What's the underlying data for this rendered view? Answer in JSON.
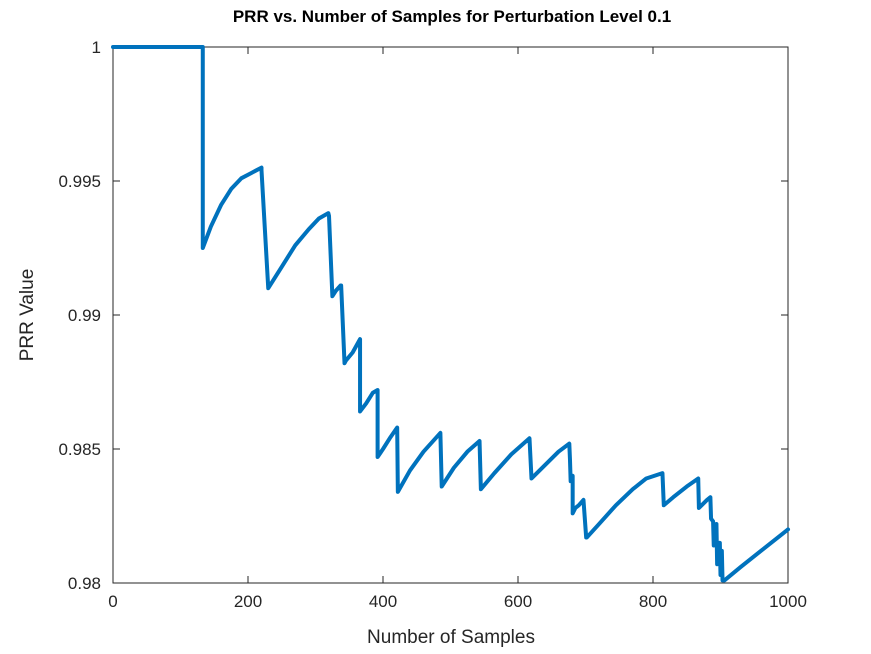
{
  "chart_data": {
    "type": "line",
    "title": "PRR vs. Number of Samples for Perturbation Level 0.1",
    "xlabel": "Number of Samples",
    "ylabel": "PRR Value",
    "xlim": [
      0,
      1000
    ],
    "ylim": [
      0.98,
      1
    ],
    "xticks": [
      0,
      200,
      400,
      600,
      800,
      1000
    ],
    "xtick_labels": [
      "0",
      "200",
      "400",
      "600",
      "800",
      "1000"
    ],
    "yticks": [
      0.98,
      0.985,
      0.99,
      0.995,
      1
    ],
    "ytick_labels": [
      "0.98",
      "0.985",
      "0.99",
      "0.995",
      "1"
    ],
    "grid": false,
    "legend": "none",
    "color": "#0072bd",
    "series": [
      {
        "x": [
          0,
          133,
          133,
          145,
          160,
          175,
          190,
          205,
          220,
          220,
          230,
          250,
          270,
          290,
          305,
          319,
          320,
          325,
          330,
          337,
          338,
          343,
          345,
          355,
          366,
          366,
          375,
          385,
          392,
          392,
          400,
          410,
          421,
          422,
          440,
          460,
          485,
          487,
          505,
          525,
          543,
          545,
          565,
          590,
          617,
          620,
          640,
          660,
          676,
          677,
          678,
          681,
          681,
          685,
          690,
          697,
          701,
          702,
          720,
          745,
          770,
          790,
          814,
          816,
          830,
          850,
          867,
          868,
          872,
          880,
          885,
          886,
          889,
          890,
          894,
          895,
          899,
          900,
          902,
          903,
          906,
          930,
          960,
          990,
          1000
        ],
        "y": [
          1.0,
          1.0,
          0.9925,
          0.9933,
          0.9941,
          0.9947,
          0.9951,
          0.9953,
          0.9955,
          0.9954,
          0.991,
          0.9918,
          0.9926,
          0.9932,
          0.9936,
          0.9938,
          0.9937,
          0.9907,
          0.9909,
          0.9911,
          0.9911,
          0.9882,
          0.9883,
          0.9886,
          0.9891,
          0.9864,
          0.9867,
          0.9871,
          0.9872,
          0.9847,
          0.985,
          0.9854,
          0.9858,
          0.9834,
          0.9842,
          0.9849,
          0.9856,
          0.9836,
          0.9843,
          0.9849,
          0.9853,
          0.9835,
          0.9841,
          0.9848,
          0.9854,
          0.9839,
          0.9844,
          0.9849,
          0.9852,
          0.9846,
          0.9838,
          0.984,
          0.9826,
          0.9828,
          0.9829,
          0.9831,
          0.9817,
          0.9817,
          0.9822,
          0.9829,
          0.9835,
          0.9839,
          0.9841,
          0.9829,
          0.9832,
          0.9836,
          0.9839,
          0.9828,
          0.9829,
          0.9831,
          0.9832,
          0.9824,
          0.9823,
          0.9814,
          0.9822,
          0.9807,
          0.9815,
          0.9803,
          0.9812,
          0.9801,
          0.9801,
          0.9806,
          0.9812,
          0.9818,
          0.982
        ]
      }
    ]
  }
}
